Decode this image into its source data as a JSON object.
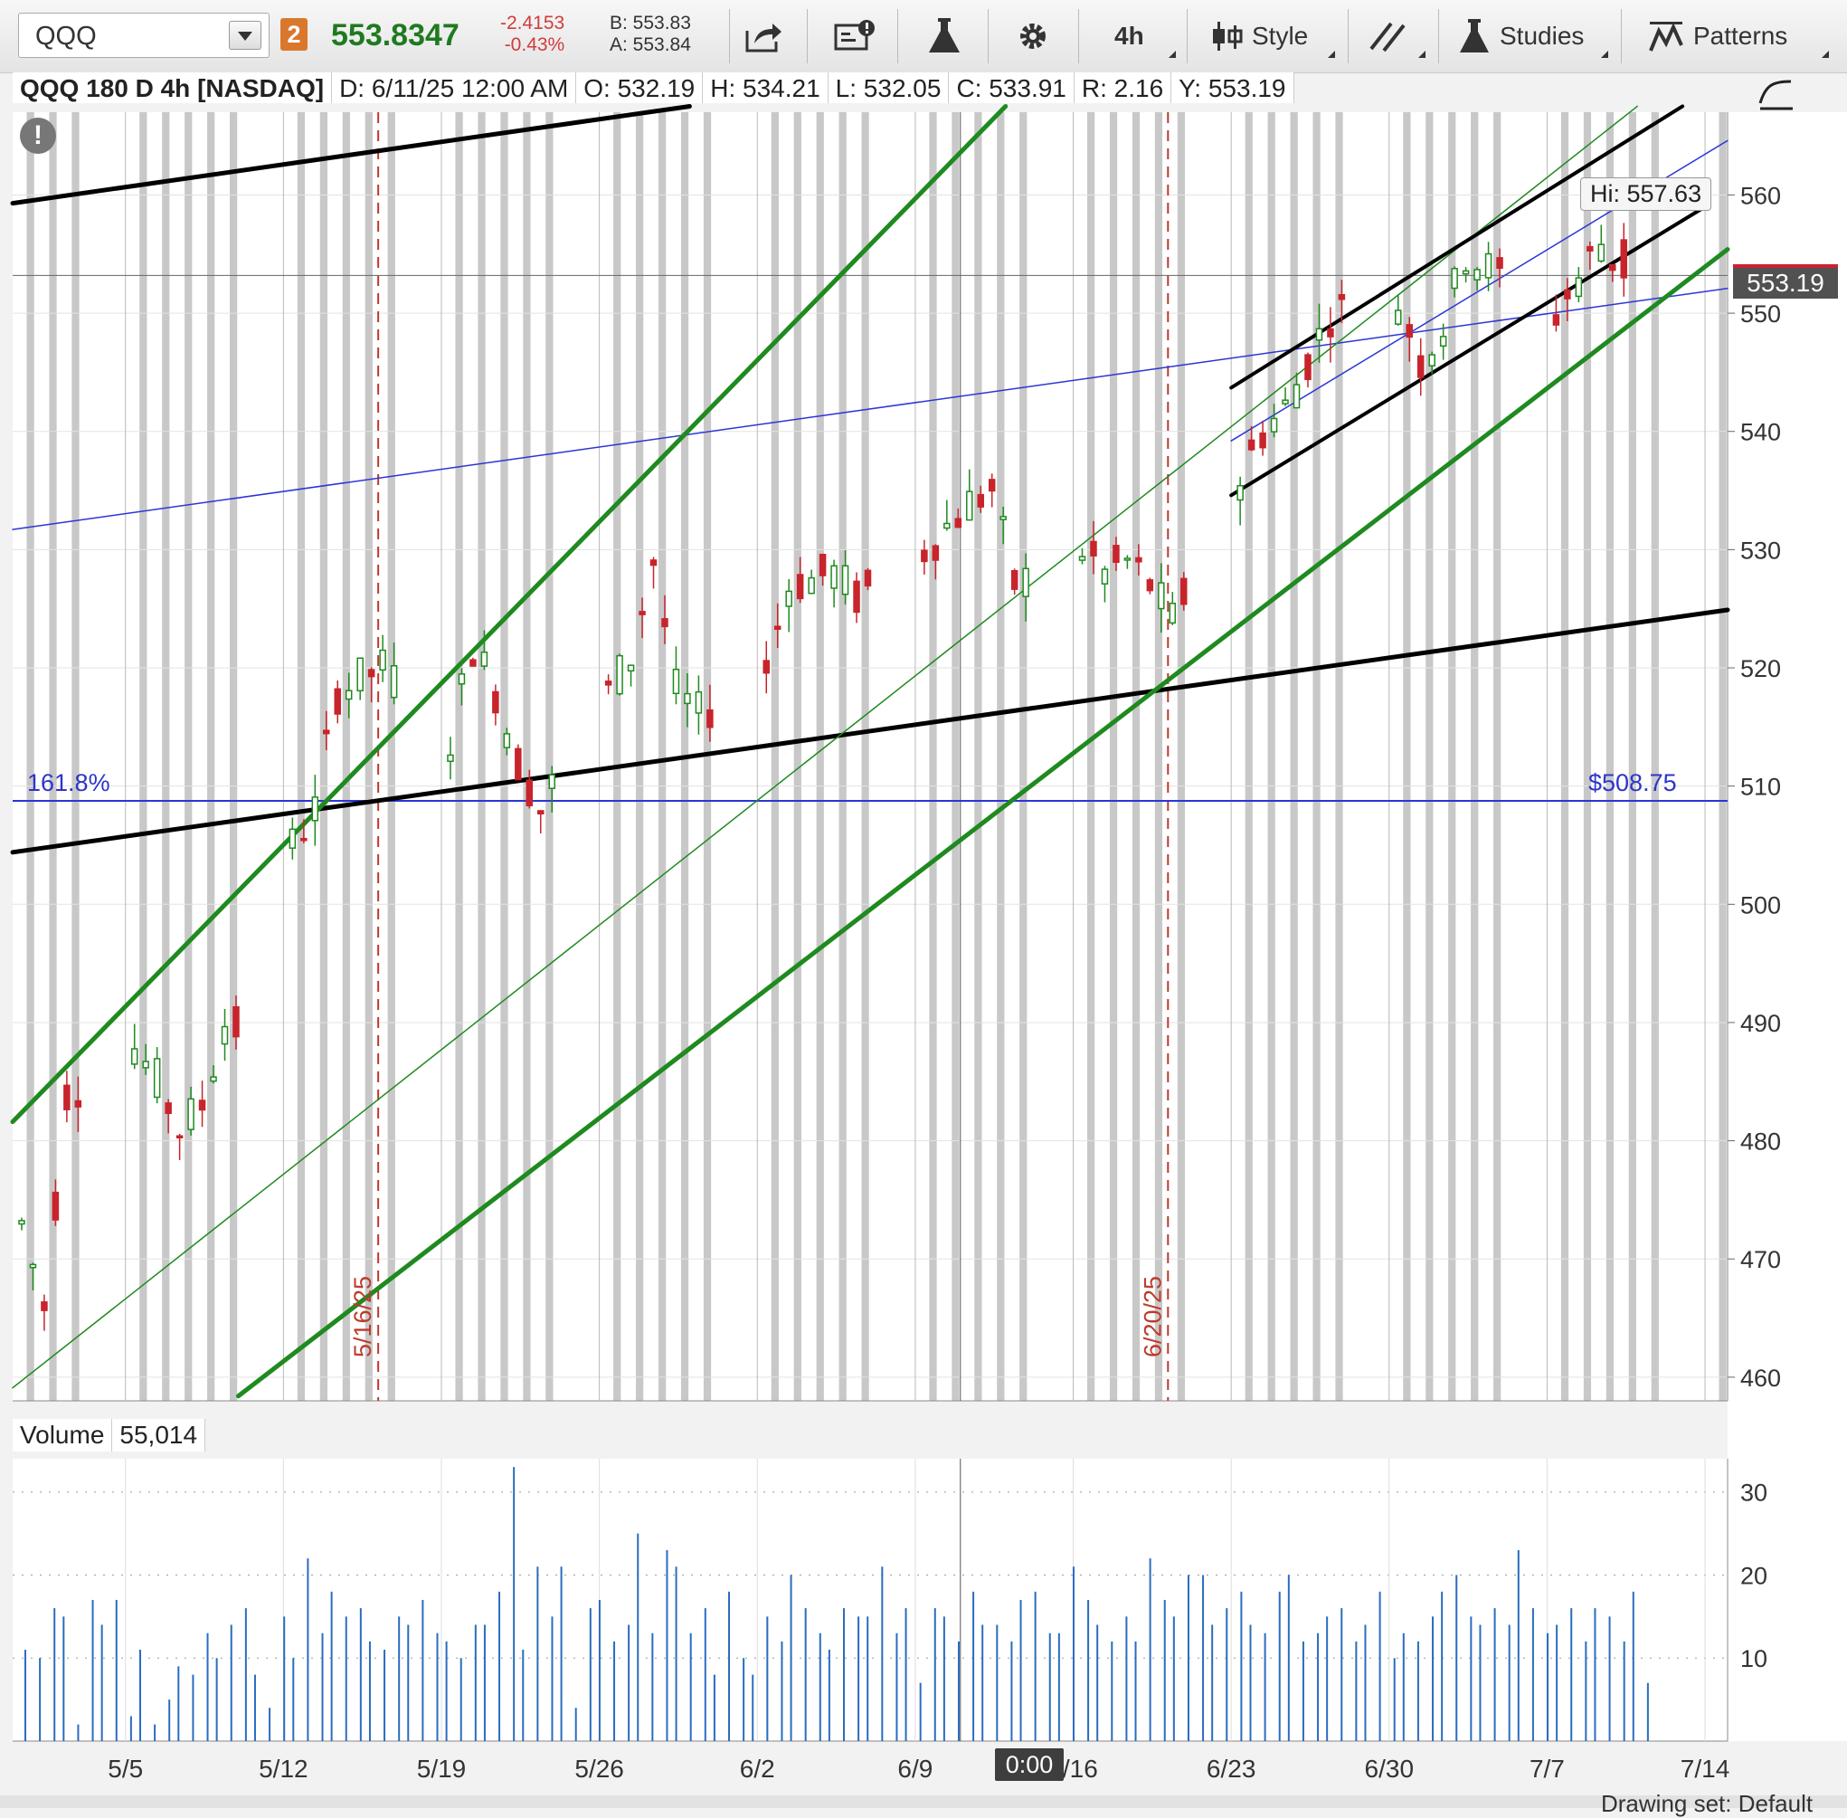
{
  "toolbar": {
    "symbol": "QQQ",
    "link_badge": "2",
    "last_price": "553.8347",
    "net_change": "-2.4153",
    "pct_change": "-0.43%",
    "bid": "B: 553.83",
    "ask": "A: 553.84",
    "interval": "4h",
    "style_label": "Style",
    "studies_label": "Studies",
    "patterns_label": "Patterns"
  },
  "header": {
    "title": "QQQ 180 D 4h [NASDAQ]",
    "date": "D: 6/11/25 12:00 AM",
    "open": "O: 532.19",
    "high": "H: 534.21",
    "low": "L: 532.05",
    "close": "C: 533.91",
    "range": "R: 2.16",
    "y": "Y: 553.19"
  },
  "annotations": {
    "warning": "!",
    "fib_label": "161.8%",
    "fib_price": "$508.75",
    "hi_label": "Hi: 557.63",
    "current_price": "553.19",
    "vline1_label": "5/16/25",
    "vline2_label": "6/20/25",
    "crosshair_time": "0:00"
  },
  "volume_header": {
    "label": "Volume",
    "value": "55,014"
  },
  "footer": {
    "drawing_set": "Drawing set: Default"
  },
  "colors": {
    "up": "#1e8a1e",
    "down": "#c8242b",
    "channel_green": "#1f8a1f",
    "trend_black": "#000000",
    "trend_blue": "#2b35d6",
    "vol_bar": "#2a6cc0",
    "band_gray": "#c8c8c8",
    "vline_red": "#c0392b"
  },
  "chart_data": [
    {
      "type": "candlestick",
      "title": "QQQ 180 D 4h [NASDAQ]",
      "ylim": [
        458,
        567
      ],
      "yticks": [
        460,
        470,
        480,
        490,
        500,
        510,
        520,
        530,
        540,
        550,
        560
      ],
      "xtick_labels": [
        "5/5",
        "5/12",
        "5/19",
        "5/26",
        "6/2",
        "6/9",
        "6/16",
        "6/23",
        "6/30",
        "7/7",
        "7/14"
      ],
      "x_domain": [
        "4/30",
        "7/15"
      ],
      "anchors": [
        {
          "x": "4/30",
          "y": 473
        },
        {
          "x": "5/1",
          "y": 466
        },
        {
          "x": "5/2",
          "y": 484
        },
        {
          "x": "5/5",
          "y": 488
        },
        {
          "x": "5/6",
          "y": 485
        },
        {
          "x": "5/7",
          "y": 481
        },
        {
          "x": "5/8",
          "y": 483
        },
        {
          "x": "5/9",
          "y": 490
        },
        {
          "x": "5/10",
          "y": 489
        },
        {
          "x": "5/12",
          "y": 505
        },
        {
          "x": "5/13",
          "y": 508
        },
        {
          "x": "5/14",
          "y": 518
        },
        {
          "x": "5/16",
          "y": 520
        },
        {
          "x": "5/19",
          "y": 514
        },
        {
          "x": "5/20",
          "y": 522
        },
        {
          "x": "5/21",
          "y": 518
        },
        {
          "x": "5/22",
          "y": 512
        },
        {
          "x": "5/23",
          "y": 508
        },
        {
          "x": "5/24",
          "y": 512
        },
        {
          "x": "5/27",
          "y": 521
        },
        {
          "x": "5/28",
          "y": 529
        },
        {
          "x": "5/29",
          "y": 518
        },
        {
          "x": "5/30",
          "y": 516
        },
        {
          "x": "6/2",
          "y": 520
        },
        {
          "x": "6/3",
          "y": 527
        },
        {
          "x": "6/5",
          "y": 528
        },
        {
          "x": "6/6",
          "y": 526
        },
        {
          "x": "6/9",
          "y": 530
        },
        {
          "x": "6/11",
          "y": 534
        },
        {
          "x": "6/12",
          "y": 535
        },
        {
          "x": "6/13",
          "y": 527
        },
        {
          "x": "6/16",
          "y": 530
        },
        {
          "x": "6/17",
          "y": 528
        },
        {
          "x": "6/18",
          "y": 529
        },
        {
          "x": "6/19",
          "y": 527
        },
        {
          "x": "6/20",
          "y": 524
        },
        {
          "x": "6/23",
          "y": 536
        },
        {
          "x": "6/24",
          "y": 540
        },
        {
          "x": "6/25",
          "y": 542
        },
        {
          "x": "6/26",
          "y": 546
        },
        {
          "x": "6/27",
          "y": 550
        },
        {
          "x": "6/30",
          "y": 551
        },
        {
          "x": "7/1",
          "y": 546
        },
        {
          "x": "7/2",
          "y": 549
        },
        {
          "x": "7/3",
          "y": 555
        },
        {
          "x": "7/7",
          "y": 550
        },
        {
          "x": "7/8",
          "y": 553
        },
        {
          "x": "7/9",
          "y": 556
        },
        {
          "x": "7/10",
          "y": 553
        }
      ],
      "horizontal_lines": [
        {
          "name": "161.8%",
          "y": 508.75
        },
        {
          "name": "current",
          "y": 553.19
        }
      ],
      "vertical_lines": [
        "5/16",
        "6/20"
      ],
      "crosshair_x": "6/11"
    },
    {
      "type": "bar",
      "title": "Volume",
      "current_value": "55,014",
      "ylim": [
        0,
        34
      ],
      "yticks": [
        10,
        20,
        30
      ],
      "series": [
        {
          "values": [
            11,
            10,
            16,
            15,
            2,
            17,
            14,
            17,
            3,
            11,
            2,
            5,
            9,
            8,
            13,
            10,
            14,
            16,
            8,
            4,
            15,
            10,
            22,
            13,
            18,
            15,
            16,
            12,
            11,
            15,
            14,
            17,
            13,
            12,
            10,
            14,
            14,
            18,
            33,
            11,
            21,
            15,
            21,
            4,
            16,
            17,
            12,
            14,
            25,
            13,
            23,
            21,
            13,
            16,
            8,
            18,
            10,
            8,
            15,
            12,
            20,
            16,
            13,
            11,
            16,
            15,
            15,
            21,
            13,
            16,
            7,
            16,
            15,
            12,
            18,
            14,
            14,
            12,
            17,
            18,
            13,
            13,
            21,
            17,
            14,
            12,
            15,
            12,
            22,
            17,
            15,
            20,
            20,
            14,
            16,
            18,
            14,
            13,
            18,
            20,
            12,
            13,
            15,
            16,
            12,
            14,
            18,
            10,
            13,
            12,
            15,
            18,
            20,
            15,
            14,
            16,
            14,
            23,
            16,
            13,
            14,
            16,
            12,
            16,
            15,
            12,
            18,
            7
          ]
        }
      ]
    }
  ]
}
